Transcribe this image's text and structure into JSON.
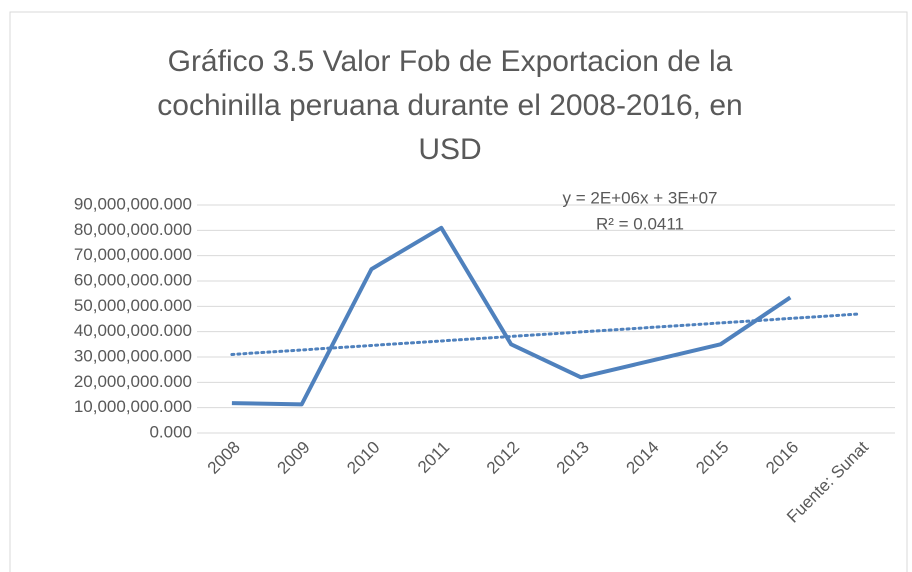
{
  "chart_data": {
    "type": "line",
    "title": "Gráfico 3.5 Valor Fob de Exportacion de la cochinilla peruana durante el 2008-2016, en USD",
    "categories": [
      "2008",
      "2009",
      "2010",
      "2011",
      "2012",
      "2013",
      "2014",
      "2015",
      "2016",
      "Fuente: Sunat"
    ],
    "series": [
      {
        "name": "Valor Fob",
        "color": "#4f81bd",
        "values": [
          11800000,
          11300000,
          64700000,
          81000000,
          35000000,
          22000000,
          28500000,
          35000000,
          53500000,
          null
        ]
      }
    ],
    "trendline": {
      "start": 31000000,
      "end": 47000000,
      "color": "#4f81bd"
    },
    "annotations": [
      "y = 2E+06x + 3E+07",
      "R² = 0.0411"
    ],
    "ylim": [
      0,
      90000000
    ],
    "yticks": [
      {
        "value": 0,
        "label": "0.000"
      },
      {
        "value": 10000000,
        "label": "10,000,000.000"
      },
      {
        "value": 20000000,
        "label": "20,000,000.000"
      },
      {
        "value": 30000000,
        "label": "30,000,000.000"
      },
      {
        "value": 40000000,
        "label": "40,000,000.000"
      },
      {
        "value": 50000000,
        "label": "50,000,000.000"
      },
      {
        "value": 60000000,
        "label": "60,000,000.000"
      },
      {
        "value": 70000000,
        "label": "70,000,000.000"
      },
      {
        "value": 80000000,
        "label": "80,000,000.000"
      },
      {
        "value": 90000000,
        "label": "90,000,000.000"
      }
    ],
    "grid": true
  }
}
